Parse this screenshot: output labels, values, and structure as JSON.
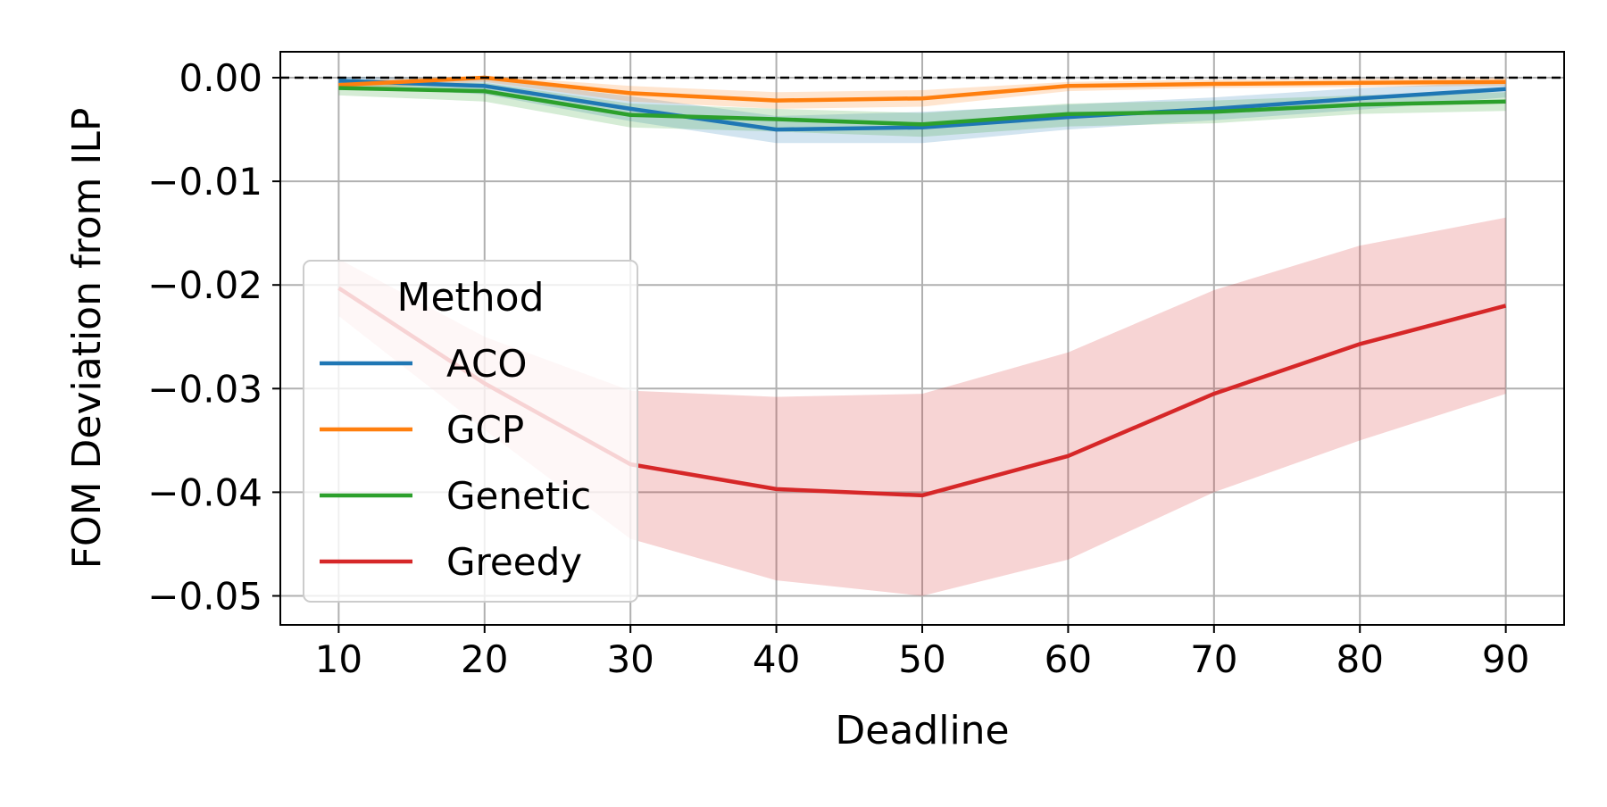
{
  "chart_data": {
    "type": "line",
    "title": "",
    "xlabel": "Deadline",
    "ylabel": "FOM Deviation from ILP",
    "x": [
      10,
      20,
      30,
      40,
      50,
      60,
      70,
      80,
      90
    ],
    "xticks": [
      "10",
      "20",
      "30",
      "40",
      "50",
      "60",
      "70",
      "80",
      "90"
    ],
    "yticks": [
      0.0,
      -0.01,
      -0.02,
      -0.03,
      -0.04,
      -0.05
    ],
    "ytick_labels": [
      "0.00",
      "−0.01",
      "−0.02",
      "−0.03",
      "−0.04",
      "−0.05"
    ],
    "xlim": [
      6,
      94
    ],
    "ylim": [
      -0.0528,
      0.0025
    ],
    "grid": true,
    "reference_line": {
      "y": 0.0,
      "style": "dashed",
      "color": "#000000"
    },
    "legend": {
      "title": "Method",
      "position": "center-left"
    },
    "series": [
      {
        "name": "ACO",
        "color": "#1f77b4",
        "values": [
          -0.0003,
          -0.0008,
          -0.003,
          -0.005,
          -0.0048,
          -0.0038,
          -0.003,
          -0.002,
          -0.0011
        ],
        "lower": [
          -0.0009,
          -0.0016,
          -0.0042,
          -0.0063,
          -0.0063,
          -0.005,
          -0.0041,
          -0.0031,
          -0.0019
        ],
        "upper": [
          0.0001,
          -0.0001,
          -0.0018,
          -0.0037,
          -0.0033,
          -0.0026,
          -0.0019,
          -0.001,
          -0.0004
        ]
      },
      {
        "name": "GCP",
        "color": "#ff7f0e",
        "values": [
          -0.0007,
          0.0,
          -0.0015,
          -0.0022,
          -0.002,
          -0.0008,
          -0.0006,
          -0.0005,
          -0.0004
        ],
        "lower": [
          -0.0012,
          -0.0004,
          -0.0023,
          -0.003,
          -0.0028,
          -0.0013,
          -0.001,
          -0.0009,
          -0.0008
        ],
        "upper": [
          -0.0003,
          0.0002,
          -0.0008,
          -0.0014,
          -0.0012,
          -0.0004,
          -0.0002,
          -0.0001,
          0.0
        ]
      },
      {
        "name": "Genetic",
        "color": "#2ca02c",
        "values": [
          -0.001,
          -0.0013,
          -0.0036,
          -0.004,
          -0.0045,
          -0.0035,
          -0.0033,
          -0.0026,
          -0.0023
        ],
        "lower": [
          -0.0017,
          -0.0023,
          -0.0048,
          -0.0052,
          -0.0057,
          -0.0047,
          -0.0044,
          -0.0035,
          -0.0032
        ],
        "upper": [
          -0.0005,
          -0.0005,
          -0.0025,
          -0.003,
          -0.0034,
          -0.0025,
          -0.0022,
          -0.0017,
          -0.0014
        ]
      },
      {
        "name": "Greedy",
        "color": "#d62728",
        "values": [
          -0.0203,
          -0.0295,
          -0.0373,
          -0.0397,
          -0.0403,
          -0.0365,
          -0.0305,
          -0.0257,
          -0.022
        ],
        "lower": [
          -0.023,
          -0.034,
          -0.0445,
          -0.0485,
          -0.05,
          -0.0465,
          -0.04,
          -0.035,
          -0.0305
        ],
        "upper": [
          -0.0175,
          -0.025,
          -0.0302,
          -0.0308,
          -0.0305,
          -0.0265,
          -0.0205,
          -0.0162,
          -0.0135
        ]
      }
    ]
  }
}
